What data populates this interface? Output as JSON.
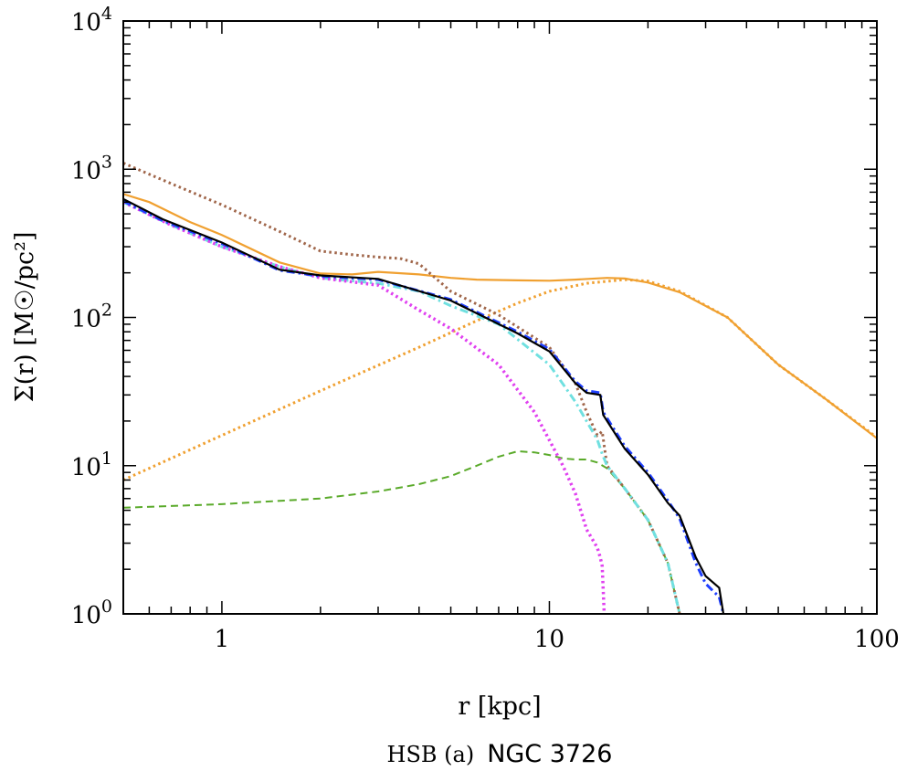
{
  "chart_data": {
    "type": "line",
    "xscale": "log",
    "yscale": "log",
    "xlim": [
      0.5,
      100
    ],
    "ylim": [
      1,
      10000
    ],
    "xlabel": "r [kpc]",
    "ylabel": "Σ(r) [M☉/pc²]",
    "grid": false,
    "x_ticks": [
      {
        "value": 1,
        "label": "1"
      },
      {
        "value": 10,
        "label": "10"
      },
      {
        "value": 100,
        "label": "100"
      }
    ],
    "y_ticks": [
      {
        "value": 1,
        "base": "10",
        "exp": "0"
      },
      {
        "value": 10,
        "base": "10",
        "exp": "1"
      },
      {
        "value": 100,
        "base": "10",
        "exp": "2"
      },
      {
        "value": 1000,
        "base": "10",
        "exp": "3"
      },
      {
        "value": 10000,
        "base": "10",
        "exp": "4"
      }
    ],
    "caption": {
      "prefix": "HSB (a)",
      "galaxy": "NGC 3726"
    },
    "series": [
      {
        "color": "#f0a030",
        "style": "dotted",
        "width": 3,
        "x": [
          0.5,
          1,
          2,
          4,
          6,
          8,
          10,
          13,
          17,
          20,
          25,
          35,
          50,
          70,
          100
        ],
        "y": [
          8,
          16,
          32,
          63,
          95,
          125,
          150,
          170,
          180,
          176,
          150,
          100,
          48,
          28,
          15.5
        ]
      },
      {
        "color": "#f0a030",
        "style": "solid",
        "width": 2.2,
        "x": [
          0.5,
          0.6,
          0.8,
          1,
          1.5,
          2,
          2.5,
          3,
          4,
          5,
          6,
          8,
          10,
          12,
          15,
          17,
          20,
          25,
          35,
          50,
          70,
          100
        ],
        "y": [
          680,
          600,
          440,
          360,
          235,
          198,
          195,
          203,
          195,
          185,
          180,
          178,
          177,
          180,
          185,
          183,
          172,
          148,
          100,
          48,
          28,
          15.3
        ]
      },
      {
        "color": "#5aaa2a",
        "style": "dashed",
        "width": 2,
        "x": [
          0.5,
          1,
          2,
          3,
          4,
          5,
          6,
          7,
          8,
          9,
          10,
          11,
          12,
          13,
          14,
          15,
          17,
          20,
          23,
          25
        ],
        "y": [
          5.2,
          5.5,
          6.0,
          6.7,
          7.5,
          8.5,
          10,
          11.5,
          12.5,
          12.3,
          11.8,
          11.2,
          11,
          11,
          10.5,
          9.6,
          7,
          4.3,
          2.2,
          1
        ]
      },
      {
        "color": "#a0664a",
        "style": "dotted",
        "width": 3,
        "x": [
          0.5,
          0.7,
          1,
          1.5,
          2,
          2.5,
          3,
          3.5,
          4,
          5,
          7,
          10,
          12,
          13,
          14,
          14.5,
          15,
          17,
          20,
          23,
          25
        ],
        "y": [
          1100,
          800,
          575,
          380,
          280,
          265,
          255,
          250,
          230,
          150,
          104,
          63,
          36,
          23,
          16,
          17,
          10,
          7,
          4.3,
          2.2,
          1
        ]
      },
      {
        "color": "#70e0e0",
        "style": "dashdot",
        "width": 3,
        "x": [
          0.5,
          0.7,
          1,
          1.5,
          2,
          3,
          4,
          5,
          7,
          10,
          12,
          14,
          14.5,
          15,
          17,
          20,
          23,
          25
        ],
        "y": [
          600,
          420,
          300,
          220,
          185,
          170,
          150,
          120,
          90,
          48,
          27,
          15,
          12,
          10,
          7,
          4.3,
          2.2,
          1
        ]
      },
      {
        "color": "#e040f0",
        "style": "dotted",
        "width": 3.5,
        "x": [
          0.5,
          0.7,
          1,
          1.5,
          2,
          3,
          4,
          5,
          7,
          9,
          11,
          12,
          13,
          14,
          14.3,
          14.5,
          14.7
        ],
        "y": [
          600,
          420,
          300,
          220,
          185,
          165,
          112,
          84,
          48,
          23,
          10,
          6.5,
          3.7,
          2.8,
          2.4,
          2.1,
          1
        ]
      },
      {
        "color": "#2040ff",
        "style": "dashdot",
        "width": 3,
        "x": [
          0.5,
          0.66,
          1,
          1.5,
          2,
          3,
          5,
          8,
          10,
          12,
          13,
          14.3,
          14.6,
          17,
          20,
          23,
          25,
          28,
          30,
          33,
          34
        ],
        "y": [
          610,
          450,
          315,
          208,
          190,
          180,
          132,
          80,
          61,
          37,
          32,
          31,
          23,
          13.5,
          9,
          5.8,
          4.4,
          2.2,
          1.6,
          1.3,
          1
        ]
      },
      {
        "color": "#000000",
        "style": "solid",
        "width": 2.2,
        "x": [
          0.5,
          0.66,
          1,
          1.5,
          2,
          3,
          5,
          8,
          10,
          12,
          13,
          14.3,
          14.6,
          17,
          20,
          23,
          25,
          28,
          30,
          33,
          34
        ],
        "y": [
          630,
          460,
          320,
          210,
          192,
          182,
          130,
          78,
          59,
          36,
          31,
          30,
          22,
          13,
          8.7,
          5.6,
          4.6,
          2.4,
          1.8,
          1.5,
          1
        ]
      }
    ]
  }
}
